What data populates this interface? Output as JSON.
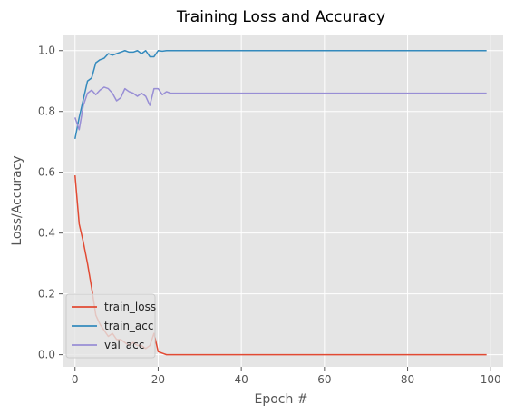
{
  "chart_data": {
    "type": "line",
    "title": "Training Loss and Accuracy",
    "xlabel": "Epoch #",
    "ylabel": "Loss/Accuracy",
    "xlim": [
      -3,
      103
    ],
    "ylim": [
      -0.04,
      1.05
    ],
    "xticks": [
      0,
      20,
      40,
      60,
      80,
      100
    ],
    "yticks": [
      0.0,
      0.2,
      0.4,
      0.6,
      0.8,
      1.0
    ],
    "xtick_labels": [
      "0",
      "20",
      "40",
      "60",
      "80",
      "100"
    ],
    "ytick_labels": [
      "0.0",
      "0.2",
      "0.4",
      "0.6",
      "0.8",
      "1.0"
    ],
    "grid": true,
    "background": "#e5e5e5",
    "legend_position": "lower-left",
    "series": [
      {
        "name": "train_loss",
        "color": "#e24a33",
        "x": [
          0,
          1,
          2,
          3,
          4,
          5,
          6,
          7,
          8,
          9,
          10,
          11,
          12,
          13,
          14,
          15,
          16,
          17,
          18,
          19,
          20,
          21,
          22,
          23,
          24,
          25,
          30,
          40,
          50,
          60,
          70,
          80,
          90,
          99
        ],
        "y": [
          0.59,
          0.43,
          0.37,
          0.3,
          0.22,
          0.13,
          0.1,
          0.08,
          0.06,
          0.07,
          0.05,
          0.05,
          0.04,
          0.03,
          0.04,
          0.03,
          0.03,
          0.02,
          0.03,
          0.07,
          0.01,
          0.005,
          0.0,
          0.0,
          0.0,
          0.0,
          0.0,
          0.0,
          0.0,
          0.0,
          0.0,
          0.0,
          0.0,
          0.0
        ]
      },
      {
        "name": "train_acc",
        "color": "#348abd",
        "x": [
          0,
          1,
          2,
          3,
          4,
          5,
          6,
          7,
          8,
          9,
          10,
          11,
          12,
          13,
          14,
          15,
          16,
          17,
          18,
          19,
          20,
          21,
          22,
          23,
          24,
          25,
          30,
          40,
          50,
          60,
          70,
          80,
          90,
          99
        ],
        "y": [
          0.71,
          0.78,
          0.84,
          0.9,
          0.91,
          0.96,
          0.97,
          0.975,
          0.99,
          0.985,
          0.99,
          0.995,
          1.0,
          0.995,
          0.995,
          1.0,
          0.99,
          1.0,
          0.98,
          0.98,
          1.0,
          0.998,
          1.0,
          1.0,
          1.0,
          1.0,
          1.0,
          1.0,
          1.0,
          1.0,
          1.0,
          1.0,
          1.0,
          1.0
        ]
      },
      {
        "name": "val_acc",
        "color": "#988ed5",
        "x": [
          0,
          1,
          2,
          3,
          4,
          5,
          6,
          7,
          8,
          9,
          10,
          11,
          12,
          13,
          14,
          15,
          16,
          17,
          18,
          19,
          20,
          21,
          22,
          23,
          24,
          25,
          30,
          40,
          50,
          60,
          70,
          80,
          90,
          99
        ],
        "y": [
          0.78,
          0.74,
          0.82,
          0.86,
          0.87,
          0.855,
          0.87,
          0.88,
          0.875,
          0.86,
          0.835,
          0.845,
          0.875,
          0.865,
          0.86,
          0.85,
          0.86,
          0.85,
          0.82,
          0.875,
          0.875,
          0.855,
          0.865,
          0.86,
          0.86,
          0.86,
          0.86,
          0.86,
          0.86,
          0.86,
          0.86,
          0.86,
          0.86,
          0.86
        ]
      }
    ]
  }
}
